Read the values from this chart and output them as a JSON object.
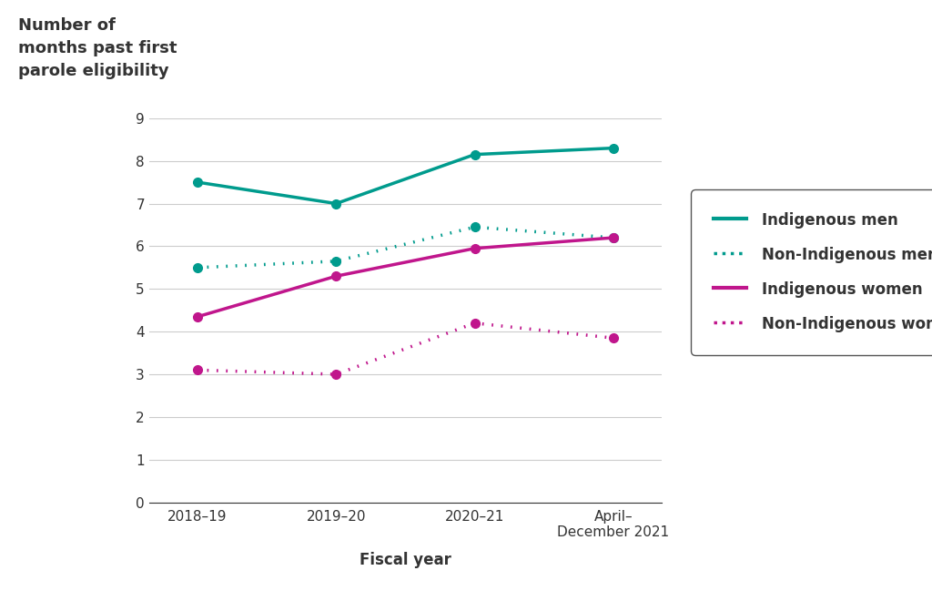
{
  "x_labels": [
    "2018–19",
    "2019–20",
    "2020–21",
    "April–\nDecember 2021"
  ],
  "x_positions": [
    0,
    1,
    2,
    3
  ],
  "indigenous_men": [
    7.5,
    7.0,
    8.15,
    8.3
  ],
  "non_indigenous_men": [
    5.5,
    5.65,
    6.45,
    6.2
  ],
  "indigenous_women": [
    4.35,
    5.3,
    5.95,
    6.2
  ],
  "non_indigenous_women": [
    3.1,
    3.0,
    4.2,
    3.85
  ],
  "teal_color": "#009B8D",
  "magenta_color": "#C0168C",
  "ylabel": "Number of\nmonths past first\nparole eligibility",
  "xlabel": "Fiscal year",
  "ylim": [
    0,
    9
  ],
  "yticks": [
    0,
    1,
    2,
    3,
    4,
    5,
    6,
    7,
    8,
    9
  ],
  "legend_labels": [
    "Indigenous men",
    "Non-Indigenous men",
    "Indigenous women",
    "Non-Indigenous women"
  ],
  "title_fontsize": 13,
  "axis_fontsize": 12,
  "tick_fontsize": 11,
  "legend_fontsize": 12,
  "line_width": 2.5,
  "marker_size": 7,
  "bg_color": "#ffffff",
  "text_color": "#333333",
  "grid_color": "#cccccc",
  "legend_edge_color": "#555555"
}
